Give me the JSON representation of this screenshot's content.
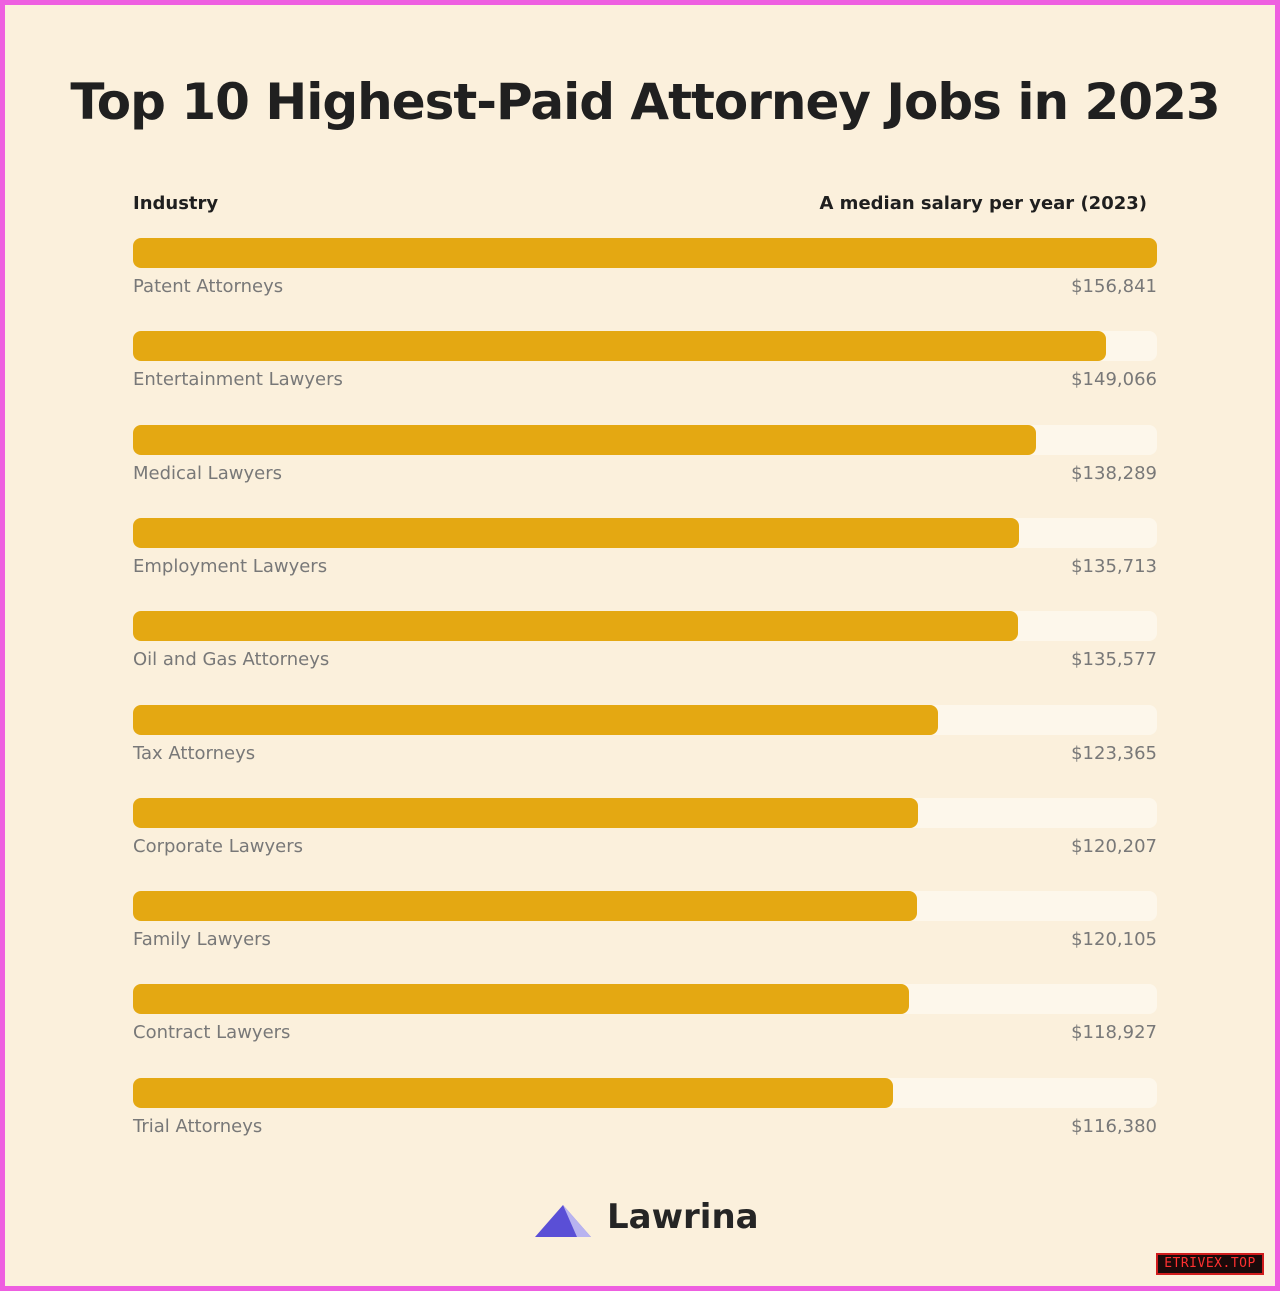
{
  "title": "Top 10 Highest-Paid Attorney Jobs in 2023",
  "header": {
    "left": "Industry",
    "right": "A median salary per year (2023)"
  },
  "chart_data": {
    "type": "bar",
    "orientation": "horizontal",
    "title": "Top 10 Highest-Paid Attorney Jobs in 2023",
    "xlabel": "A median salary per year (2023)",
    "ylabel": "Industry",
    "categories": [
      "Patent Attorneys",
      "Entertainment Lawyers",
      "Medical Lawyers",
      "Employment Lawyers",
      "Oil and Gas Attorneys",
      "Tax Attorneys",
      "Corporate Lawyers",
      "Family Lawyers",
      "Contract Lawyers",
      "Trial Attorneys"
    ],
    "values": [
      156841,
      149066,
      138289,
      135713,
      135577,
      123365,
      120207,
      120105,
      118927,
      116380
    ],
    "value_labels": [
      "$156,841",
      "$149,066",
      "$138,289",
      "$135,713",
      "$135,577",
      "$123,365",
      "$120,207",
      "$120,105",
      "$118,927",
      "$116,380"
    ],
    "xlim": [
      0,
      156841
    ],
    "grid": false,
    "legend": "none",
    "colors": {
      "bar": "#e4a812",
      "track": "#fdf7eb",
      "background": "#fbf0dc"
    }
  },
  "brand": {
    "name": "Lawrina",
    "mark_color": "#5a4fd6"
  },
  "watermark": "ETRIVEX.TOP"
}
